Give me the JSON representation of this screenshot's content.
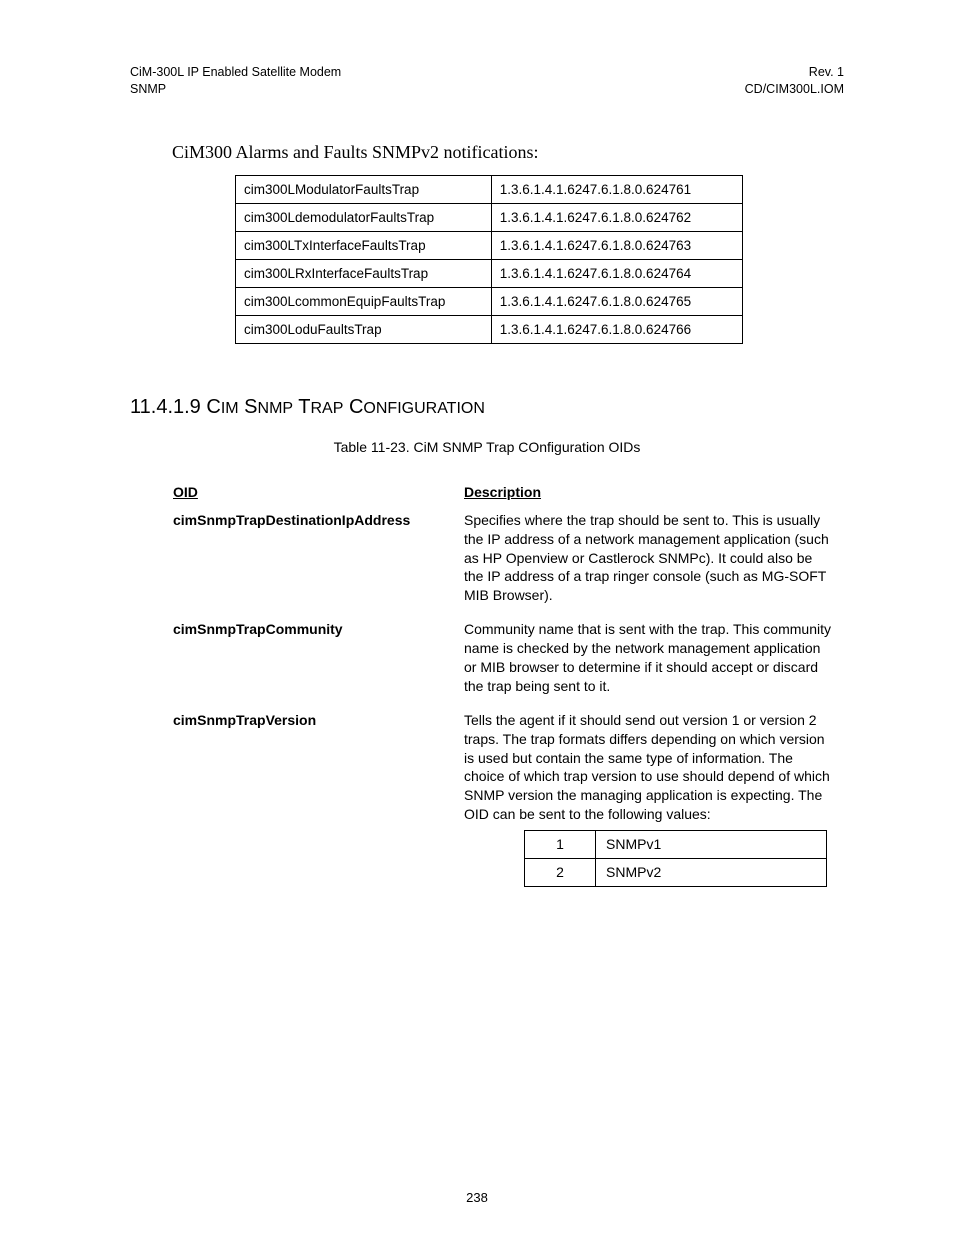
{
  "header": {
    "left_line1": "CiM-300L IP Enabled Satellite Modem",
    "left_line2": "SNMP",
    "right_line1": "Rev. 1",
    "right_line2": "CD/CIM300L.IOM"
  },
  "notifications": {
    "title": "CiM300 Alarms and Faults SNMPv2 notifications:",
    "rows": [
      {
        "name": "cim300LModulatorFaultsTrap",
        "oid": "1.3.6.1.4.1.6247.6.1.8.0.624761"
      },
      {
        "name": "cim300LdemodulatorFaultsTrap",
        "oid": "1.3.6.1.4.1.6247.6.1.8.0.624762"
      },
      {
        "name": "cim300LTxInterfaceFaultsTrap",
        "oid": "1.3.6.1.4.1.6247.6.1.8.0.624763"
      },
      {
        "name": "cim300LRxInterfaceFaultsTrap",
        "oid": "1.3.6.1.4.1.6247.6.1.8.0.624764"
      },
      {
        "name": "cim300LcommonEquipFaultsTrap",
        "oid": "1.3.6.1.4.1.6247.6.1.8.0.624765"
      },
      {
        "name": "cim300LoduFaultsTrap",
        "oid": "1.3.6.1.4.1.6247.6.1.8.0.624766"
      }
    ]
  },
  "trap_config": {
    "heading_number": "11.4.1.9",
    "heading_text": "CiM SNMP Trap Configuration",
    "caption": "Table 11-23.  CiM SNMP Trap COnfiguration OIDs",
    "col_oid": "OID",
    "col_desc": "Description",
    "rows": [
      {
        "oid": "cimSnmpTrapDestinationIpAddress",
        "desc": "Specifies where the trap should be sent to.  This is usually the IP address of a network management application (such as HP Openview or Castlerock SNMPc).  It could also be the IP address of a trap ringer console (such as MG-SOFT MIB Browser)."
      },
      {
        "oid": "cimSnmpTrapCommunity",
        "desc": "Community name that is sent with the trap.  This community name is checked by the network management application or MIB browser to determine if it should accept or discard the trap being sent to it."
      },
      {
        "oid": "cimSnmpTrapVersion",
        "desc": "Tells the agent if it should send out version 1 or version 2 traps.  The trap formats differs depending on which version is used but contain the same type of information.  The choice of which trap version to use should depend of which SNMP version the managing application is expecting.  The OID can be sent to the following values:"
      }
    ],
    "versions": [
      {
        "num": "1",
        "label": "SNMPv1"
      },
      {
        "num": "2",
        "label": "SNMPv2"
      }
    ]
  },
  "page_number": "238"
}
